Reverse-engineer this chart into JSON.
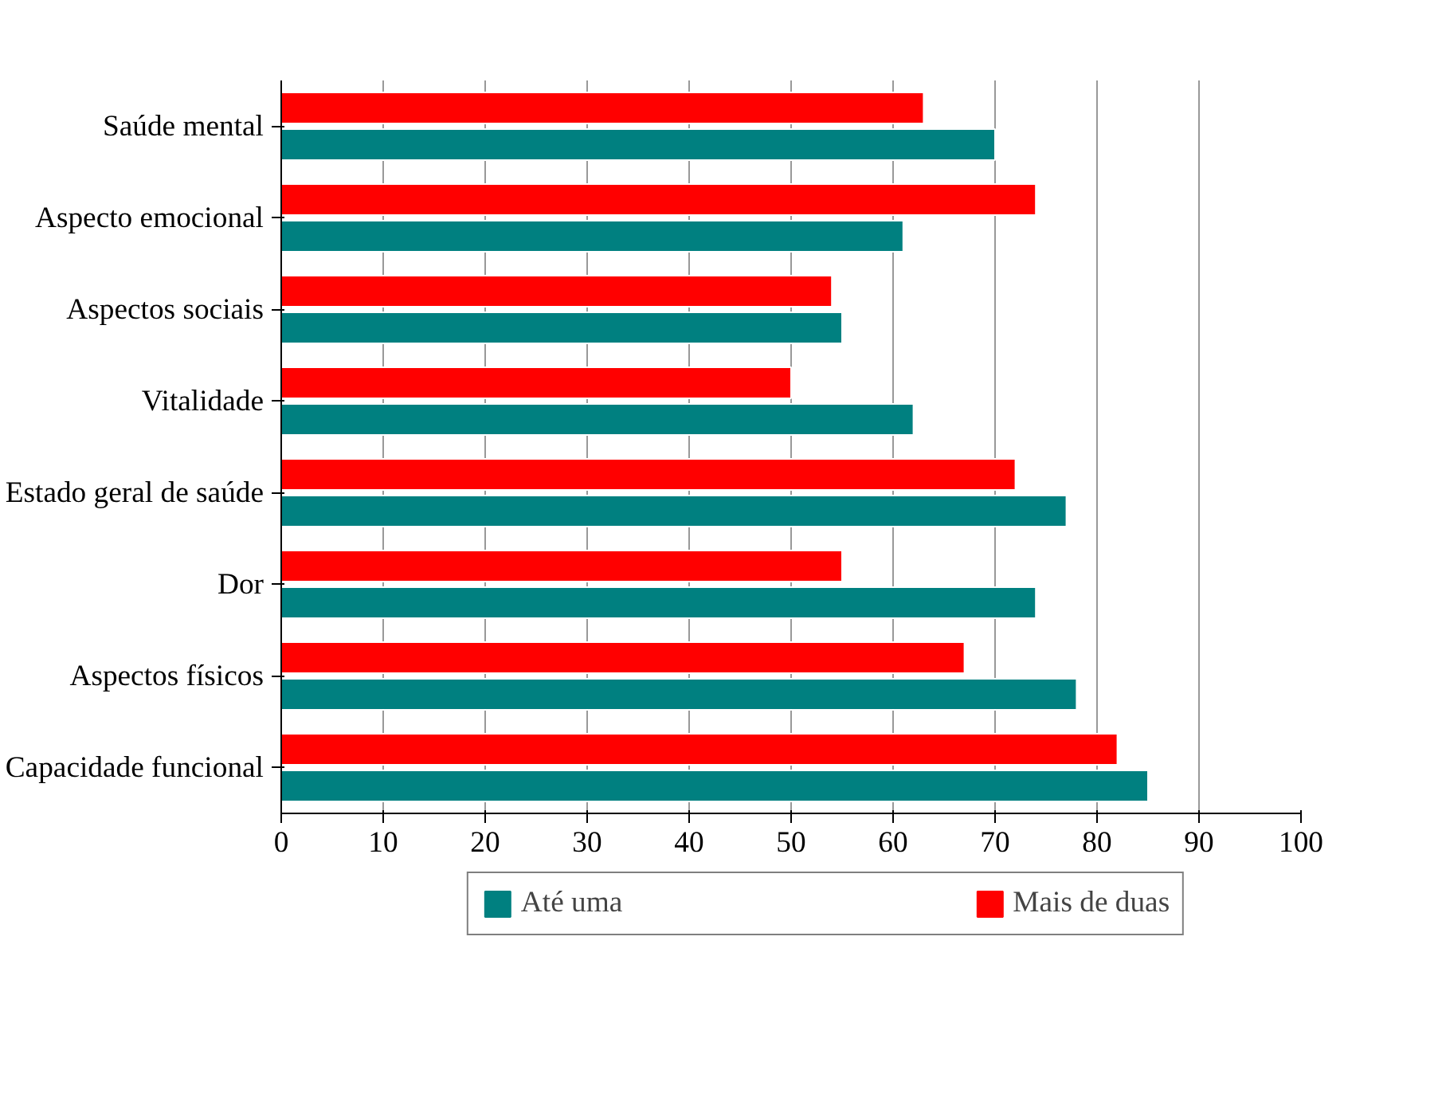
{
  "chart_data": {
    "type": "bar",
    "orientation": "horizontal",
    "categories": [
      "Saúde mental",
      "Aspecto emocional",
      "Aspectos sociais",
      "Vitalidade",
      "Estado geral de saúde",
      "Dor",
      "Aspectos físicos",
      "Capacidade funcional"
    ],
    "series": [
      {
        "name": "Mais de duas",
        "color": "#ff0000",
        "values": [
          63,
          74,
          54,
          50,
          72,
          55,
          67,
          82
        ]
      },
      {
        "name": "Até uma",
        "color": "#008080",
        "values": [
          70,
          61,
          55,
          62,
          77,
          74,
          78,
          85
        ]
      }
    ],
    "xlim": [
      0,
      100
    ],
    "xticks": [
      0,
      10,
      20,
      30,
      40,
      50,
      60,
      70,
      80,
      90,
      100
    ],
    "grid": "x",
    "legend": "bottom"
  }
}
